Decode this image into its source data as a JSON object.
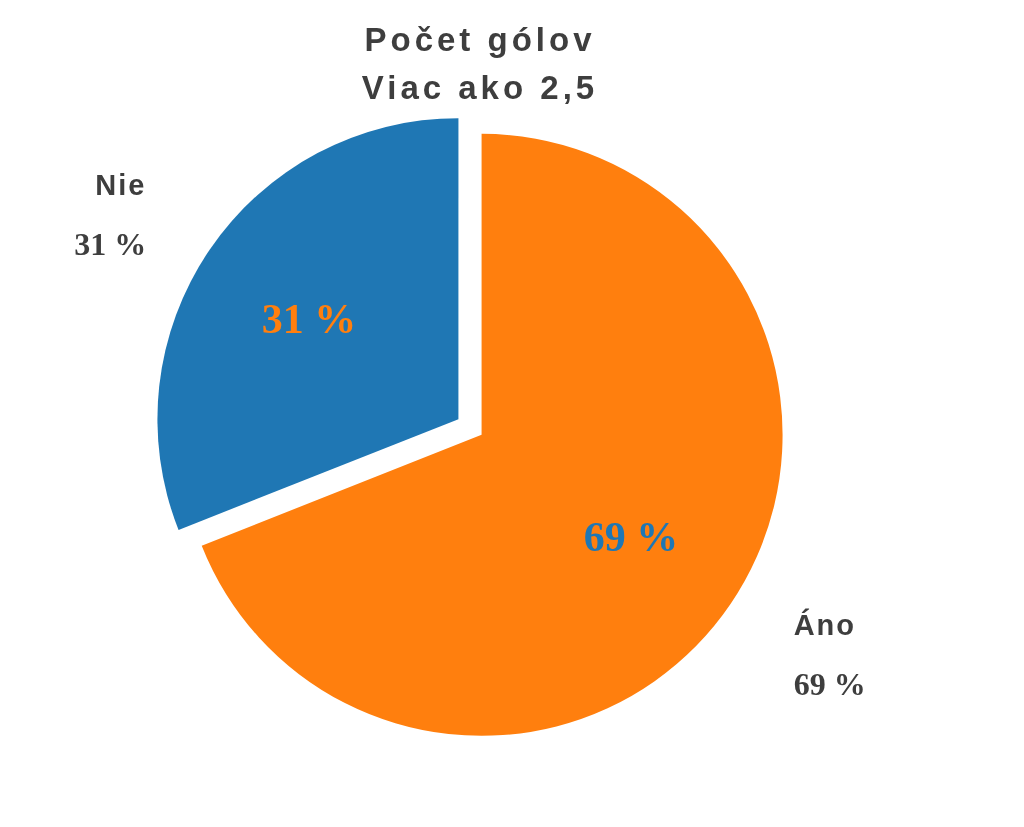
{
  "chart_data": {
    "type": "pie",
    "title": "Počet gólov",
    "subtitle": "Viac ako 2,5",
    "categories": [
      "Áno",
      "Nie"
    ],
    "values": [
      69,
      31
    ],
    "colors": [
      "#ff7f0e",
      "#1f77b4"
    ],
    "value_labels": [
      "69 %",
      "31 %"
    ]
  }
}
